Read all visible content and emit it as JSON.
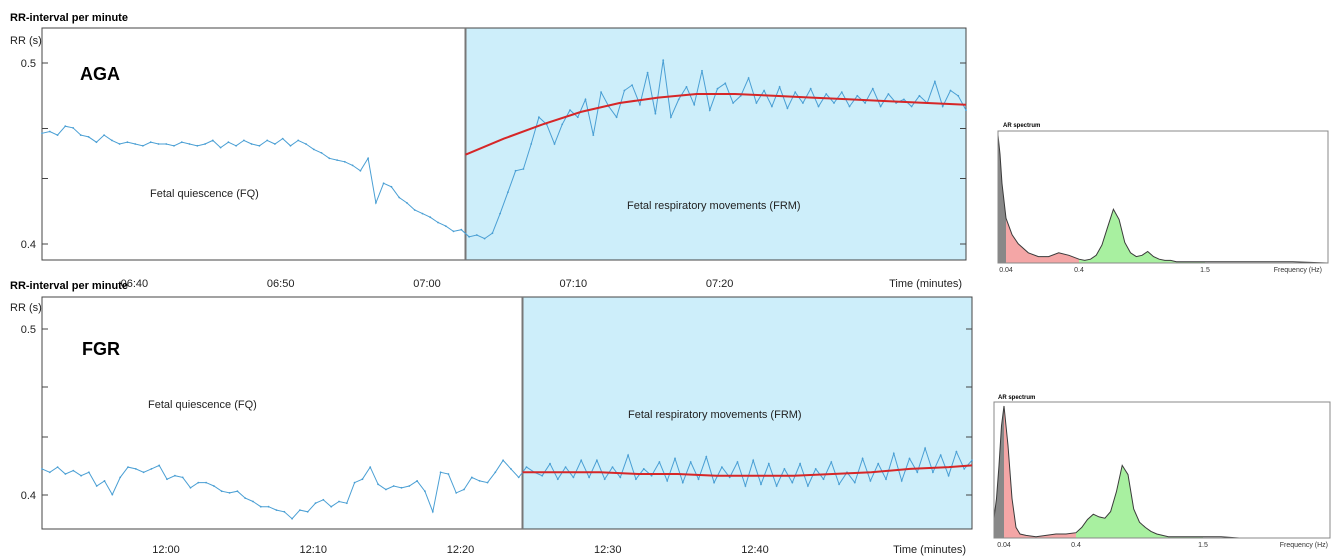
{
  "chart_data": [
    {
      "type": "line",
      "title": "RR-interval  per minute",
      "ylabel": "RR (s)",
      "group_label": "AGA",
      "y_ticks": [
        "0.5",
        "0.4"
      ],
      "ylim": [
        0.39,
        0.52
      ],
      "x_tick_labels": [
        "06:40",
        "06:50",
        "07:00",
        "07:10",
        "07:20"
      ],
      "xlabel": "Time (minutes)",
      "xlim": [
        0,
        120
      ],
      "x_tick_positions": [
        12,
        31,
        50,
        69,
        88
      ],
      "frm_start": 55,
      "regions": {
        "fq": "Fetal quiescence (FQ)",
        "frm": "Fetal respiratory movements (FRM)"
      },
      "series": [
        {
          "values": [
            0.461,
            0.462,
            0.46,
            0.465,
            0.464,
            0.46,
            0.459,
            0.456,
            0.46,
            0.457,
            0.455,
            0.456,
            0.455,
            0.454,
            0.456,
            0.455,
            0.455,
            0.454,
            0.456,
            0.455,
            0.454,
            0.455,
            0.457,
            0.453,
            0.456,
            0.454,
            0.457,
            0.455,
            0.454,
            0.457,
            0.455,
            0.458,
            0.454,
            0.457,
            0.455,
            0.452,
            0.45,
            0.447,
            0.446,
            0.445,
            0.443,
            0.44,
            0.447,
            0.422,
            0.433,
            0.431,
            0.425,
            0.422,
            0.418,
            0.416,
            0.414,
            0.411,
            0.409,
            0.406,
            0.407,
            0.403,
            0.404,
            0.402,
            0.405,
            0.416,
            0.428,
            0.44,
            0.441,
            0.455,
            0.47,
            0.466,
            0.455,
            0.466,
            0.474,
            0.47,
            0.48,
            0.46,
            0.484,
            0.476,
            0.47,
            0.485,
            0.488,
            0.477,
            0.495,
            0.472,
            0.502,
            0.47,
            0.48,
            0.487,
            0.477,
            0.496,
            0.474,
            0.486,
            0.489,
            0.478,
            0.482,
            0.492,
            0.478,
            0.485,
            0.476,
            0.487,
            0.475,
            0.484,
            0.478,
            0.486,
            0.476,
            0.483,
            0.478,
            0.484,
            0.476,
            0.482,
            0.478,
            0.486,
            0.476,
            0.483,
            0.478,
            0.48,
            0.476,
            0.482,
            0.478,
            0.49,
            0.476,
            0.485,
            0.482,
            0.474
          ]
        },
        {
          "name": "trend",
          "x": [
            55,
            60,
            65,
            70,
            75,
            80,
            85,
            90,
            95,
            100,
            105,
            110,
            115,
            120
          ],
          "values": [
            0.449,
            0.458,
            0.466,
            0.473,
            0.478,
            0.481,
            0.483,
            0.483,
            0.482,
            0.481,
            0.48,
            0.479,
            0.478,
            0.477
          ]
        }
      ],
      "colors": {
        "data": "#4a9fd4",
        "trend": "#d62728",
        "frm_fill": "#cdeefa"
      }
    },
    {
      "type": "line",
      "title": "RR-interval  per minute",
      "ylabel": "RR (s)",
      "group_label": "FGR",
      "y_ticks": [
        "0.5",
        "0.4"
      ],
      "ylim": [
        0.385,
        0.52
      ],
      "x_tick_labels": [
        "12:00",
        "12:10",
        "12:20",
        "12:30",
        "12:40"
      ],
      "xlabel": "Time (minutes)",
      "xlim": [
        0,
        120
      ],
      "x_tick_positions": [
        16,
        35,
        54,
        73,
        92
      ],
      "frm_start": 62,
      "regions": {
        "fq": "Fetal quiescence (FQ)",
        "frm": "Fetal respiratory movements (FRM)"
      },
      "series": [
        {
          "values": [
            0.42,
            0.418,
            0.421,
            0.417,
            0.419,
            0.416,
            0.418,
            0.41,
            0.413,
            0.405,
            0.415,
            0.421,
            0.42,
            0.418,
            0.42,
            0.422,
            0.414,
            0.416,
            0.415,
            0.409,
            0.412,
            0.412,
            0.41,
            0.407,
            0.406,
            0.407,
            0.403,
            0.401,
            0.398,
            0.398,
            0.396,
            0.395,
            0.391,
            0.396,
            0.395,
            0.4,
            0.402,
            0.398,
            0.401,
            0.4,
            0.412,
            0.414,
            0.421,
            0.411,
            0.408,
            0.41,
            0.409,
            0.41,
            0.413,
            0.407,
            0.395,
            0.418,
            0.417,
            0.406,
            0.408,
            0.415,
            0.413,
            0.412,
            0.418,
            0.425,
            0.42,
            0.415,
            0.421,
            0.418,
            0.416,
            0.423,
            0.414,
            0.421,
            0.415,
            0.425,
            0.415,
            0.425,
            0.414,
            0.421,
            0.415,
            0.428,
            0.414,
            0.42,
            0.416,
            0.424,
            0.413,
            0.426,
            0.412,
            0.424,
            0.414,
            0.427,
            0.412,
            0.421,
            0.415,
            0.424,
            0.41,
            0.425,
            0.411,
            0.423,
            0.41,
            0.42,
            0.412,
            0.423,
            0.41,
            0.42,
            0.414,
            0.424,
            0.411,
            0.418,
            0.412,
            0.426,
            0.413,
            0.423,
            0.414,
            0.429,
            0.413,
            0.426,
            0.418,
            0.432,
            0.418,
            0.428,
            0.416,
            0.43,
            0.42,
            0.425
          ]
        },
        {
          "name": "trend",
          "x": [
            62,
            67,
            72,
            77,
            82,
            87,
            92,
            97,
            102,
            107,
            112,
            117,
            120
          ],
          "values": [
            0.418,
            0.418,
            0.418,
            0.417,
            0.417,
            0.416,
            0.416,
            0.416,
            0.417,
            0.418,
            0.42,
            0.421,
            0.422
          ]
        }
      ],
      "colors": {
        "data": "#4a9fd4",
        "trend": "#d62728",
        "frm_fill": "#cdeefa"
      }
    },
    {
      "type": "area",
      "title": "AR spectrum",
      "xlabel": "Frequency (Hz)",
      "x_tick_labels": [
        "0.04",
        "0.4",
        "1.5"
      ],
      "xlim": [
        0,
        2.2
      ],
      "ylim": [
        0,
        1
      ],
      "bands": [
        {
          "range": [
            0,
            0.04
          ],
          "color": "#888888"
        },
        {
          "range": [
            0.04,
            0.4
          ],
          "color": "#f4a6a6"
        },
        {
          "range": [
            0.4,
            1.5
          ],
          "color": "#a8f0a0"
        }
      ],
      "x": [
        0,
        0.01,
        0.02,
        0.04,
        0.07,
        0.1,
        0.15,
        0.2,
        0.25,
        0.3,
        0.35,
        0.4,
        0.45,
        0.5,
        0.55,
        0.6,
        0.65,
        0.7,
        0.75,
        0.8,
        0.85,
        0.9,
        0.95,
        1.0,
        1.05,
        1.1,
        1.15,
        1.2,
        1.25,
        1.3,
        1.35,
        1.4,
        1.45,
        1.5,
        1.6,
        1.8,
        2.0,
        2.2
      ],
      "values": [
        1.0,
        0.85,
        0.62,
        0.35,
        0.22,
        0.15,
        0.08,
        0.05,
        0.05,
        0.08,
        0.06,
        0.03,
        0.02,
        0.03,
        0.06,
        0.14,
        0.28,
        0.42,
        0.34,
        0.16,
        0.08,
        0.05,
        0.06,
        0.09,
        0.05,
        0.03,
        0.02,
        0.02,
        0.01,
        0.01,
        0.01,
        0.01,
        0.01,
        0.01,
        0.01,
        0.01,
        0.01,
        0.0
      ]
    },
    {
      "type": "area",
      "title": "AR spectrum",
      "xlabel": "Frequency (Hz)",
      "x_tick_labels": [
        "0.04",
        "0.4",
        "1.5"
      ],
      "xlim": [
        0,
        2.2
      ],
      "ylim": [
        0,
        1
      ],
      "bands": [
        {
          "range": [
            0,
            0.04
          ],
          "color": "#888888"
        },
        {
          "range": [
            0.04,
            0.4
          ],
          "color": "#f4a6a6"
        },
        {
          "range": [
            0.4,
            1.5
          ],
          "color": "#a8f0a0"
        }
      ],
      "x": [
        0,
        0.01,
        0.02,
        0.03,
        0.04,
        0.06,
        0.08,
        0.1,
        0.12,
        0.15,
        0.2,
        0.25,
        0.3,
        0.35,
        0.4,
        0.45,
        0.5,
        0.55,
        0.6,
        0.65,
        0.7,
        0.75,
        0.8,
        0.85,
        0.9,
        0.95,
        1.0,
        1.05,
        1.1,
        1.15,
        1.2,
        1.3,
        1.4,
        1.5,
        1.6,
        1.7,
        2.0,
        2.2
      ],
      "values": [
        0.15,
        0.3,
        0.55,
        0.85,
        1.0,
        0.7,
        0.3,
        0.08,
        0.03,
        0.02,
        0.01,
        0.02,
        0.03,
        0.03,
        0.04,
        0.08,
        0.14,
        0.18,
        0.16,
        0.15,
        0.2,
        0.35,
        0.55,
        0.48,
        0.22,
        0.12,
        0.08,
        0.05,
        0.03,
        0.02,
        0.01,
        0.01,
        0.01,
        0.01,
        0.01,
        0.0,
        0.0,
        0.0
      ]
    }
  ]
}
